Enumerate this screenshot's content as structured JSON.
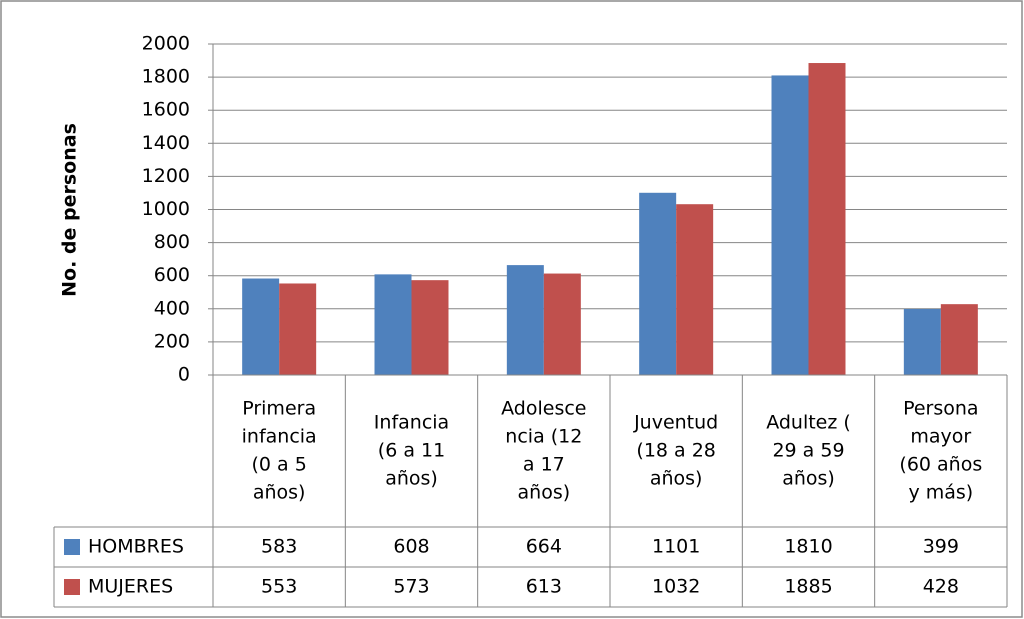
{
  "chart_data": {
    "type": "bar",
    "ylabel": "No. de personas",
    "ylim": [
      0,
      2000
    ],
    "yticks": [
      0,
      200,
      400,
      600,
      800,
      1000,
      1200,
      1400,
      1600,
      1800,
      2000
    ],
    "grid": true,
    "legend": "data-table",
    "categories": [
      [
        "Primera",
        "infancia",
        "(0 a 5",
        "años)"
      ],
      [
        "Infancia",
        "(6 a 11",
        "años)"
      ],
      [
        "Adolesce",
        "ncia (12",
        "a 17",
        "años)"
      ],
      [
        "Juventud",
        "(18 a 28",
        "años)"
      ],
      [
        "Adultez (",
        "29 a 59",
        "años)"
      ],
      [
        "Persona",
        "mayor",
        "(60 años",
        "y más)"
      ]
    ],
    "series": [
      {
        "name": "HOMBRES",
        "color": "#4F81BD",
        "values": [
          583,
          608,
          664,
          1101,
          1810,
          399
        ]
      },
      {
        "name": "MUJERES",
        "color": "#C0504D",
        "values": [
          553,
          573,
          613,
          1032,
          1885,
          428
        ]
      }
    ]
  }
}
